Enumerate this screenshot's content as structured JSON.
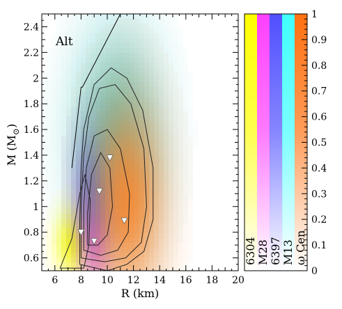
{
  "chart_data": {
    "type": "heatmap",
    "title": "",
    "annotation": "Alt",
    "xlabel": "R (km)",
    "ylabel_main": "M (M",
    "ylabel_sub": "⊙",
    "ylabel_close": ")",
    "xlim": [
      5,
      20
    ],
    "ylim": [
      0.5,
      2.5
    ],
    "x_ticks": [
      6,
      8,
      10,
      12,
      14,
      16,
      18,
      20
    ],
    "y_ticks": [
      0.6,
      0.8,
      1.0,
      1.2,
      1.4,
      1.6,
      1.8,
      2.0,
      2.2,
      2.4
    ],
    "y_tick_labels": [
      "0.6",
      "0.8",
      "1",
      "1.2",
      "1.4",
      "1.6",
      "1.8",
      "2",
      "2.2",
      "2.4"
    ],
    "colorbar": {
      "range": [
        0,
        1
      ],
      "ticks": [
        0,
        0.1,
        0.2,
        0.3,
        0.4,
        0.5,
        0.6,
        0.7,
        0.8,
        0.9,
        1
      ],
      "tick_labels": [
        "0",
        "0.1",
        "0.2",
        "0.3",
        "0.4",
        "0.5",
        "0.6",
        "0.7",
        "0.8",
        "0.9",
        "1"
      ],
      "sources": [
        {
          "name": "6304",
          "color": "#ffff00"
        },
        {
          "name": "M28",
          "color": "#ff40ff"
        },
        {
          "name": "6397",
          "color": "#5050ff"
        },
        {
          "name": "M13",
          "color": "#40ffff"
        },
        {
          "name": "ω Cen",
          "color": "#ff7010"
        }
      ]
    },
    "blobs": [
      {
        "name": "6304",
        "cx": 7.3,
        "cy": 0.72,
        "sx": 0.9,
        "sy": 0.18,
        "color": "#ffff00"
      },
      {
        "name": "M28",
        "cx": 9.1,
        "cy": 0.85,
        "sx": 0.8,
        "sy": 0.3,
        "color": "#ff40ff"
      },
      {
        "name": "6397",
        "cx": 9.2,
        "cy": 1.18,
        "sx": 1.1,
        "sy": 0.3,
        "color": "#3030ff"
      },
      {
        "name": "M13",
        "cx": 10.8,
        "cy": 1.55,
        "sx": 2.3,
        "sy": 0.55,
        "color": "#40c0c0"
      },
      {
        "name": "ω Cen",
        "cx": 11.5,
        "cy": 1.05,
        "sx": 2.0,
        "sy": 0.55,
        "color": "#ff8020"
      }
    ],
    "causality_line": [
      [
        8.0,
        1.93
      ],
      [
        8.1,
        1.93
      ],
      [
        11.0,
        2.5
      ]
    ],
    "causality_left": [
      [
        7.3,
        1.3
      ],
      [
        8.0,
        1.93
      ]
    ],
    "markers": [
      {
        "x": 10.2,
        "y": 1.38
      },
      {
        "x": 9.4,
        "y": 1.12
      },
      {
        "x": 11.3,
        "y": 0.89
      },
      {
        "x": 8.0,
        "y": 0.8
      },
      {
        "x": 9.0,
        "y": 0.73
      }
    ],
    "contours": [
      [
        [
          7.9,
          0.55
        ],
        [
          7.9,
          0.9
        ],
        [
          8.0,
          1.3
        ],
        [
          8.2,
          1.6
        ],
        [
          9.0,
          1.95
        ],
        [
          10.3,
          2.08
        ],
        [
          11.5,
          2.0
        ],
        [
          12.7,
          1.75
        ],
        [
          13.5,
          1.3
        ],
        [
          13.5,
          0.9
        ],
        [
          12.8,
          0.65
        ],
        [
          11.5,
          0.55
        ],
        [
          10.0,
          0.5
        ]
      ],
      [
        [
          8.0,
          0.6
        ],
        [
          8.0,
          1.0
        ],
        [
          8.2,
          1.4
        ],
        [
          8.6,
          1.7
        ],
        [
          9.4,
          1.92
        ],
        [
          10.6,
          1.95
        ],
        [
          11.8,
          1.8
        ],
        [
          12.8,
          1.45
        ],
        [
          13.0,
          1.0
        ],
        [
          12.6,
          0.72
        ],
        [
          11.4,
          0.6
        ],
        [
          9.8,
          0.57
        ]
      ],
      [
        [
          8.2,
          0.66
        ],
        [
          8.2,
          1.0
        ],
        [
          8.4,
          1.3
        ],
        [
          9.0,
          1.55
        ],
        [
          10.0,
          1.6
        ],
        [
          11.0,
          1.45
        ],
        [
          11.7,
          1.1
        ],
        [
          11.6,
          0.8
        ],
        [
          10.8,
          0.66
        ],
        [
          9.5,
          0.62
        ]
      ],
      [
        [
          8.5,
          0.7
        ],
        [
          8.5,
          0.95
        ],
        [
          8.8,
          1.25
        ],
        [
          9.5,
          1.42
        ],
        [
          10.2,
          1.3
        ],
        [
          10.4,
          1.0
        ],
        [
          10.0,
          0.78
        ],
        [
          9.3,
          0.7
        ]
      ],
      [
        [
          6.4,
          0.52
        ],
        [
          7.3,
          0.75
        ],
        [
          7.9,
          1.1
        ],
        [
          8.3,
          1.25
        ],
        [
          8.7,
          1.05
        ],
        [
          8.6,
          0.7
        ],
        [
          8.2,
          0.52
        ]
      ]
    ]
  }
}
